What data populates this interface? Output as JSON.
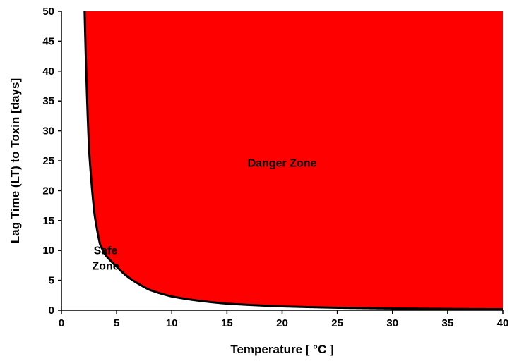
{
  "chart_data": {
    "type": "area",
    "xlabel": "Temperature [ °C ]",
    "ylabel": "Lag Time (LT) to Toxin [days]",
    "xlim": [
      0,
      40
    ],
    "ylim": [
      0,
      50
    ],
    "x_ticks": [
      0,
      5,
      10,
      15,
      20,
      25,
      30,
      35,
      40
    ],
    "y_ticks": [
      0,
      5,
      10,
      15,
      20,
      25,
      30,
      35,
      40,
      45,
      50
    ],
    "grid": false,
    "curve": {
      "x": [
        2.1,
        2.5,
        3,
        3.5,
        4,
        4.5,
        5,
        6,
        7,
        8,
        10,
        12,
        15,
        20,
        25,
        30,
        35,
        40
      ],
      "y": [
        50,
        27,
        16,
        11,
        9.2,
        8.2,
        7.3,
        5.6,
        4.4,
        3.4,
        2.3,
        1.7,
        1.1,
        0.65,
        0.42,
        0.3,
        0.22,
        0.17
      ]
    },
    "fill_color": "#ff0000",
    "curve_color": "#000000",
    "annotations": [
      {
        "text_lines": [
          "Danger Zone"
        ],
        "x": 20,
        "y": 24
      },
      {
        "text_lines": [
          "Safe",
          "Zone"
        ],
        "x": 4,
        "y": 9.4
      }
    ]
  }
}
